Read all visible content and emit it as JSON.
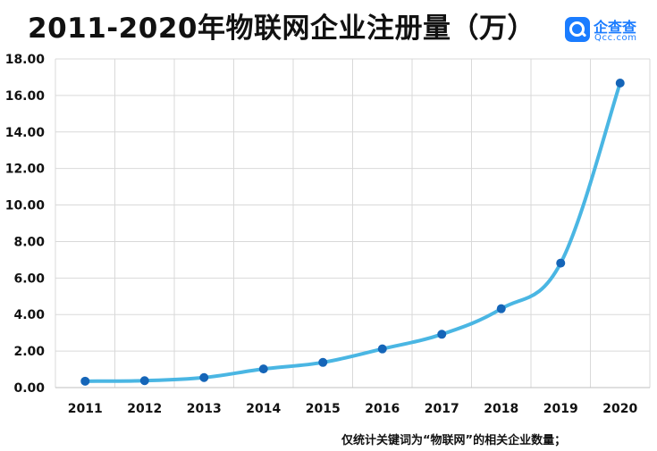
{
  "header": {
    "title": "2011-2020年物联网企业注册量（万）"
  },
  "logo": {
    "cn": "企查查",
    "en": "Qcc.com"
  },
  "footnote": "仅统计关键词为“物联网”的相关企业数量；",
  "colors": {
    "line": "#4ab6e3",
    "marker": "#1565b8",
    "grid": "#d9d9d9"
  },
  "chart_data": {
    "type": "line",
    "title": "2011-2020年物联网企业注册量（万）",
    "xlabel": "",
    "ylabel": "",
    "categories": [
      "2011",
      "2012",
      "2013",
      "2014",
      "2015",
      "2016",
      "2017",
      "2018",
      "2019",
      "2020"
    ],
    "series": [
      {
        "values": [
          0.35,
          0.38,
          0.55,
          1.02,
          1.38,
          2.12,
          2.92,
          4.32,
          6.82,
          16.68
        ]
      }
    ],
    "yticks": [
      "0.00",
      "2.00",
      "4.00",
      "6.00",
      "8.00",
      "10.00",
      "12.00",
      "14.00",
      "16.00",
      "18.00"
    ],
    "ylim": [
      0,
      18
    ],
    "grid": true,
    "legend": "none"
  }
}
